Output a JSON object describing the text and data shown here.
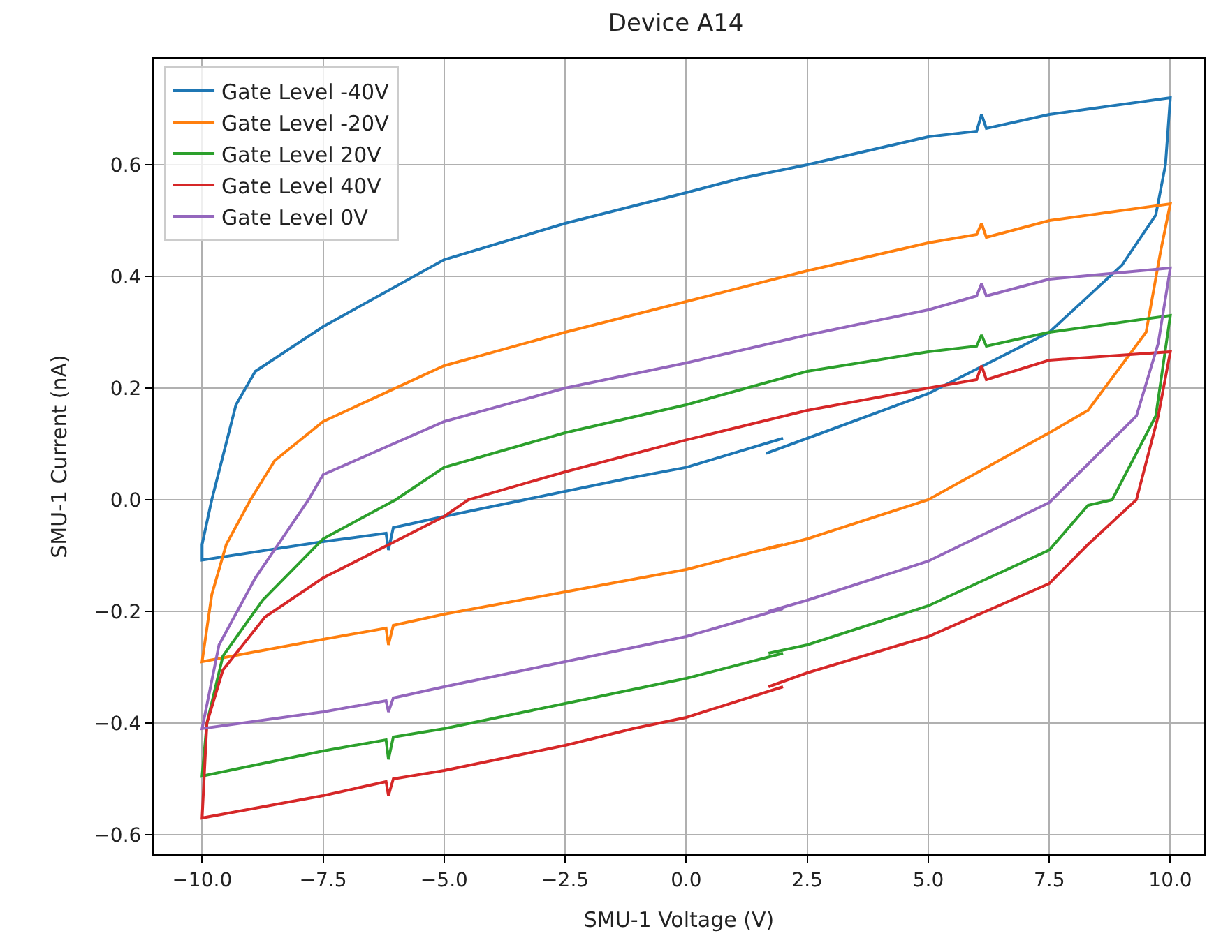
{
  "chart_data": {
    "type": "line",
    "title": "Device A14",
    "xlabel": "SMU-1 Voltage (V)",
    "ylabel": "SMU-1 Current (nA)",
    "xlim": [
      -11.0,
      10.7
    ],
    "ylim": [
      -0.635,
      0.79
    ],
    "xticks": [
      {
        "value": -10,
        "label": "−10.0"
      },
      {
        "value": -7.5,
        "label": "−7.5"
      },
      {
        "value": -5,
        "label": "−5.0"
      },
      {
        "value": -2.5,
        "label": "−2.5"
      },
      {
        "value": 0,
        "label": "0.0"
      },
      {
        "value": 2.5,
        "label": "2.5"
      },
      {
        "value": 5,
        "label": "5.0"
      },
      {
        "value": 7.5,
        "label": "7.5"
      },
      {
        "value": 10,
        "label": "10.0"
      }
    ],
    "yticks": [
      {
        "value": -0.6,
        "label": "−0.6"
      },
      {
        "value": -0.4,
        "label": "−0.4"
      },
      {
        "value": -0.2,
        "label": "−0.2"
      },
      {
        "value": 0,
        "label": "0.0"
      },
      {
        "value": 0.2,
        "label": "0.2"
      },
      {
        "value": 0.4,
        "label": "0.4"
      },
      {
        "value": 0.6,
        "label": "0.6"
      }
    ],
    "grid": true,
    "legend": "top left",
    "marker": "none",
    "line_style": "solid",
    "series": [
      {
        "name": "Gate Level -40V",
        "color": "#1f77b4",
        "x": [
          1.65,
          2.5,
          5,
          7.5,
          9,
          9.7,
          9.9,
          10,
          7.5,
          6.2,
          6.1,
          6.0,
          5,
          2.5,
          1.1,
          0,
          -2.5,
          -5,
          -7.5,
          -8.9,
          -9.3,
          -9.8,
          -10,
          -10,
          -7.5,
          -6.2,
          -6.15,
          -6.05,
          -5,
          -2.5,
          -1.1,
          0,
          2
        ],
        "values": [
          0.083,
          0.11,
          0.19,
          0.3,
          0.42,
          0.51,
          0.6,
          0.72,
          0.69,
          0.665,
          0.69,
          0.66,
          0.65,
          0.6,
          0.575,
          0.55,
          0.495,
          0.43,
          0.31,
          0.23,
          0.17,
          0.0,
          -0.08,
          -0.108,
          -0.075,
          -0.06,
          -0.09,
          -0.05,
          -0.03,
          0.015,
          0.04,
          0.058,
          0.11
        ]
      },
      {
        "name": "Gate Level -20V",
        "color": "#ff7f0e",
        "x": [
          1.7,
          2.5,
          5,
          7.5,
          8.3,
          9.5,
          9.8,
          10,
          7.5,
          6.2,
          6.1,
          6.0,
          5,
          2.5,
          0,
          -2.5,
          -5,
          -7.5,
          -8.5,
          -9.0,
          -9.5,
          -9.8,
          -10,
          -7.5,
          -6.2,
          -6.15,
          -6.05,
          -5,
          -2.5,
          0,
          2
        ],
        "values": [
          -0.088,
          -0.07,
          0.0,
          0.12,
          0.16,
          0.3,
          0.445,
          0.53,
          0.5,
          0.47,
          0.495,
          0.475,
          0.46,
          0.41,
          0.355,
          0.3,
          0.24,
          0.14,
          0.07,
          0.0,
          -0.08,
          -0.17,
          -0.29,
          -0.25,
          -0.23,
          -0.26,
          -0.225,
          -0.205,
          -0.165,
          -0.125,
          -0.08
        ]
      },
      {
        "name": "Gate Level 20V",
        "color": "#2ca02c",
        "x": [
          1.7,
          2.5,
          5,
          7.5,
          8.3,
          8.8,
          9.7,
          10,
          7.5,
          6.2,
          6.1,
          6.0,
          5,
          2.5,
          0,
          -2.5,
          -5,
          -6.0,
          -7.5,
          -8.75,
          -9.57,
          -9.9,
          -10,
          -7.5,
          -6.2,
          -6.15,
          -6.05,
          -5,
          -2.5,
          0,
          2
        ],
        "values": [
          -0.275,
          -0.26,
          -0.19,
          -0.09,
          -0.01,
          0.0,
          0.15,
          0.33,
          0.3,
          0.275,
          0.295,
          0.275,
          0.265,
          0.23,
          0.17,
          0.12,
          0.058,
          0.0,
          -0.07,
          -0.18,
          -0.28,
          -0.4,
          -0.495,
          -0.45,
          -0.43,
          -0.465,
          -0.425,
          -0.41,
          -0.365,
          -0.32,
          -0.275
        ]
      },
      {
        "name": "Gate Level 40V",
        "color": "#d62728",
        "x": [
          1.7,
          2.5,
          5,
          7.5,
          8.3,
          9.3,
          9.75,
          10,
          7.5,
          6.2,
          6.1,
          6.0,
          5,
          2.5,
          0,
          -2.5,
          -4.5,
          -5,
          -7.5,
          -8.7,
          -9.57,
          -9.9,
          -10,
          -7.5,
          -6.2,
          -6.15,
          -6.05,
          -5,
          -2.5,
          -1.1,
          0,
          2
        ],
        "values": [
          -0.335,
          -0.31,
          -0.245,
          -0.15,
          -0.08,
          0.0,
          0.15,
          0.265,
          0.25,
          0.215,
          0.24,
          0.215,
          0.2,
          0.16,
          0.107,
          0.05,
          0.0,
          -0.03,
          -0.14,
          -0.21,
          -0.305,
          -0.4,
          -0.57,
          -0.53,
          -0.505,
          -0.53,
          -0.5,
          -0.485,
          -0.44,
          -0.41,
          -0.39,
          -0.335
        ]
      },
      {
        "name": "Gate Level 0V",
        "color": "#9467bd",
        "x": [
          1.7,
          2.5,
          5,
          7.5,
          9.3,
          9.75,
          10,
          7.5,
          6.2,
          6.1,
          6.0,
          5,
          2.5,
          0,
          -2.5,
          -5,
          -7.5,
          -7.8,
          -8.9,
          -9.65,
          -10,
          -7.5,
          -6.2,
          -6.15,
          -6.05,
          -5,
          -2.5,
          0,
          2
        ],
        "values": [
          -0.2,
          -0.18,
          -0.11,
          -0.005,
          0.15,
          0.28,
          0.415,
          0.395,
          0.365,
          0.387,
          0.365,
          0.34,
          0.295,
          0.245,
          0.2,
          0.14,
          0.045,
          0.0,
          -0.14,
          -0.26,
          -0.41,
          -0.38,
          -0.36,
          -0.38,
          -0.355,
          -0.335,
          -0.29,
          -0.245,
          -0.195
        ]
      }
    ]
  }
}
